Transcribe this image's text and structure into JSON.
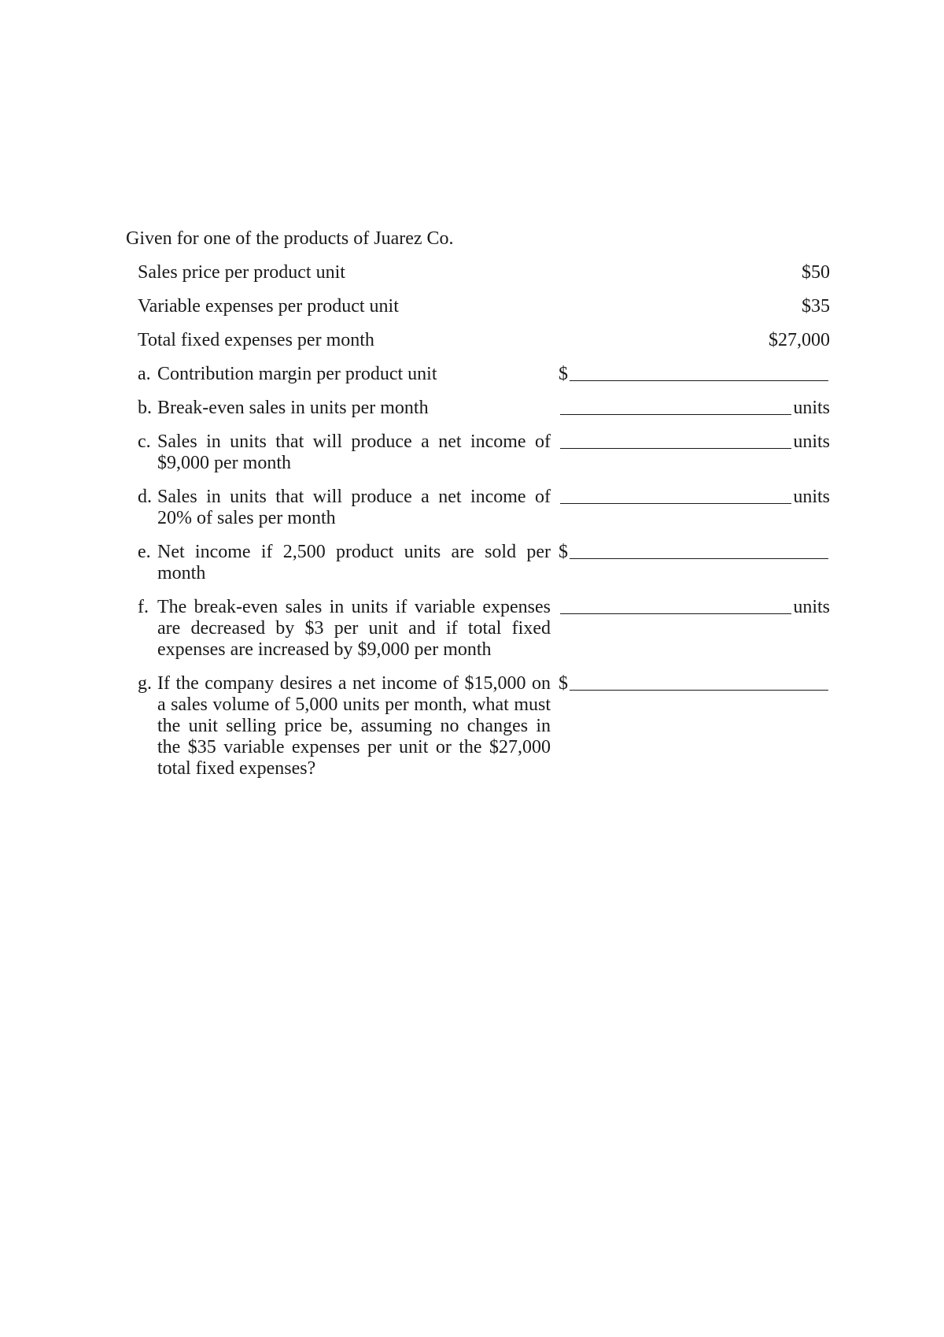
{
  "header": "Given for one of the products of Juarez Co.",
  "given": [
    {
      "label": "Sales price per product unit",
      "value": "$50"
    },
    {
      "label": "Variable expenses per product unit",
      "value": "$35"
    },
    {
      "label": "Total fixed expenses per month",
      "value": "$27,000"
    }
  ],
  "questions": [
    {
      "marker": "a.",
      "text": "Contribution margin per product unit",
      "prefix": "$",
      "suffix": ""
    },
    {
      "marker": "b.",
      "text": "Break-even sales in units per month",
      "prefix": "",
      "suffix": "units"
    },
    {
      "marker": "c.",
      "text": "Sales in units that will produce a net income of $9,000 per month",
      "prefix": "",
      "suffix": "units"
    },
    {
      "marker": "d.",
      "text": "Sales in units that will produce a net income of 20% of sales per month",
      "prefix": "",
      "suffix": "units"
    },
    {
      "marker": "e.",
      "text": "Net income if 2,500 product units are sold per month",
      "prefix": "$",
      "suffix": ""
    },
    {
      "marker": "f.",
      "text": "The break-even sales in units if variable expenses are decreased by $3 per unit and if total fixed expenses are increased by $9,000 per month",
      "prefix": "",
      "suffix": "units"
    },
    {
      "marker": "g.",
      "text": "If the company desires a net income of $15,000 on a sales volume of 5,000 units per month, what must the unit selling price be, assuming no changes in the $35 variable expenses per unit or the $27,000 total fixed expenses?",
      "prefix": "$",
      "suffix": ""
    }
  ],
  "style": {
    "background_color": "#ffffff",
    "text_color": "#1a1a1a",
    "font_family": "Times New Roman",
    "font_size_pt": 18,
    "line_color": "#1a1a1a"
  }
}
